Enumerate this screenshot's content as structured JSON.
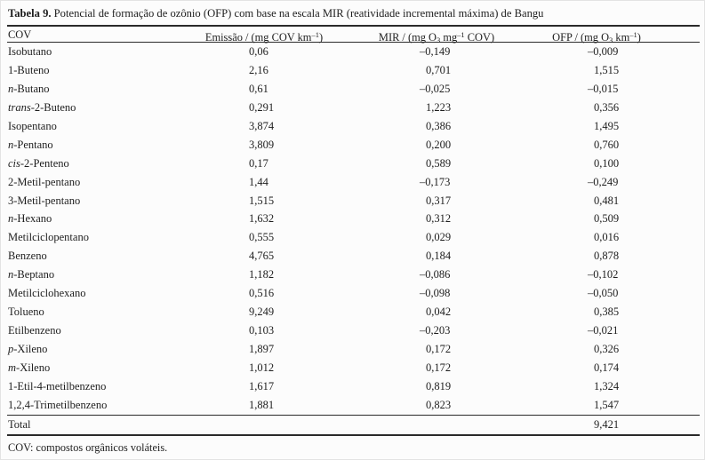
{
  "title": {
    "label": "Tabela 9.",
    "text": " Potencial de formação de ozônio (OFP) com base na escala MIR (reatividade incremental máxima) de Bangu"
  },
  "table": {
    "columns": [
      {
        "id": "cov",
        "parts": [
          {
            "t": "COV"
          }
        ]
      },
      {
        "id": "emissao",
        "parts": [
          {
            "t": "Emissão / (mg COV km"
          },
          {
            "sup": "–1"
          },
          {
            "t": ")"
          }
        ]
      },
      {
        "id": "mir",
        "parts": [
          {
            "t": "MIR / (mg O"
          },
          {
            "sub": "3"
          },
          {
            "t": " mg"
          },
          {
            "sup": "–1"
          },
          {
            "t": " COV)"
          }
        ]
      },
      {
        "id": "ofp",
        "parts": [
          {
            "t": "OFP / (mg O"
          },
          {
            "sub": "3"
          },
          {
            "t": " km"
          },
          {
            "sup": "–1"
          },
          {
            "t": ")"
          }
        ]
      }
    ],
    "rows": [
      {
        "cov_italic": "",
        "cov_text": "Isobutano",
        "emissao": "0,06",
        "mir": "–0,149",
        "ofp": "–0,009"
      },
      {
        "cov_italic": "",
        "cov_text": "1-Buteno",
        "emissao": "2,16",
        "mir": "0,701",
        "ofp": "1,515"
      },
      {
        "cov_italic": "n",
        "cov_text": "-Butano",
        "emissao": "0,61",
        "mir": "–0,025",
        "ofp": "–0,015"
      },
      {
        "cov_italic": "trans",
        "cov_text": "-2-Buteno",
        "emissao": "0,291",
        "mir": "1,223",
        "ofp": "0,356"
      },
      {
        "cov_italic": "",
        "cov_text": "Isopentano",
        "emissao": "3,874",
        "mir": "0,386",
        "ofp": "1,495"
      },
      {
        "cov_italic": "n",
        "cov_text": "-Pentano",
        "emissao": "3,809",
        "mir": "0,200",
        "ofp": "0,760"
      },
      {
        "cov_italic": "cis",
        "cov_text": "-2-Penteno",
        "emissao": "0,17",
        "mir": "0,589",
        "ofp": "0,100"
      },
      {
        "cov_italic": "",
        "cov_text": "2-Metil-pentano",
        "emissao": "1,44",
        "mir": "–0,173",
        "ofp": "–0,249"
      },
      {
        "cov_italic": "",
        "cov_text": "3-Metil-pentano",
        "emissao": "1,515",
        "mir": "0,317",
        "ofp": "0,481"
      },
      {
        "cov_italic": "n",
        "cov_text": "-Hexano",
        "emissao": "1,632",
        "mir": "0,312",
        "ofp": "0,509"
      },
      {
        "cov_italic": "",
        "cov_text": "Metilciclopentano",
        "emissao": "0,555",
        "mir": "0,029",
        "ofp": "0,016"
      },
      {
        "cov_italic": "",
        "cov_text": "Benzeno",
        "emissao": "4,765",
        "mir": "0,184",
        "ofp": "0,878"
      },
      {
        "cov_italic": "n",
        "cov_text": "-Beptano",
        "emissao": "1,182",
        "mir": "–0,086",
        "ofp": "–0,102"
      },
      {
        "cov_italic": "",
        "cov_text": "Metilciclohexano",
        "emissao": "0,516",
        "mir": "–0,098",
        "ofp": "–0,050"
      },
      {
        "cov_italic": "",
        "cov_text": "Tolueno",
        "emissao": "9,249",
        "mir": "0,042",
        "ofp": "0,385"
      },
      {
        "cov_italic": "",
        "cov_text": "Etilbenzeno",
        "emissao": "0,103",
        "mir": "–0,203",
        "ofp": "–0,021"
      },
      {
        "cov_italic": "p",
        "cov_text": "-Xileno",
        "emissao": "1,897",
        "mir": "0,172",
        "ofp": "0,326"
      },
      {
        "cov_italic": "m",
        "cov_text": "-Xileno",
        "emissao": "1,012",
        "mir": "0,172",
        "ofp": "0,174"
      },
      {
        "cov_italic": "",
        "cov_text": "1-Etil-4-metilbenzeno",
        "emissao": "1,617",
        "mir": "0,819",
        "ofp": "1,324"
      },
      {
        "cov_italic": "",
        "cov_text": "1,2,4-Trimetilbenzeno",
        "emissao": "1,881",
        "mir": "0,823",
        "ofp": "1,547"
      }
    ],
    "total": {
      "label": "Total",
      "ofp": "9,421"
    }
  },
  "footnote": "COV: compostos orgânicos voláteis."
}
